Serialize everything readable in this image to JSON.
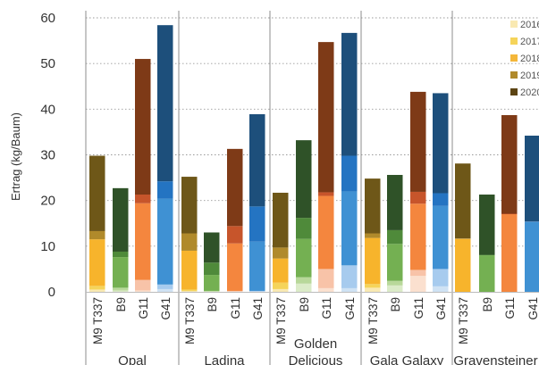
{
  "chart_data": {
    "type": "bar",
    "stacked": true,
    "ylabel": "Ertrag (kg/Baum)",
    "xlabel": "",
    "ylim": [
      0,
      60
    ],
    "yticks": [
      0,
      10,
      20,
      30,
      40,
      50,
      60
    ],
    "grid": "horizontal-dotted",
    "legend_position": "top-right",
    "years": [
      "2016",
      "2017",
      "2018",
      "2019",
      "2020"
    ],
    "legend": [
      {
        "label": "2016",
        "color": "#f9e9b2"
      },
      {
        "label": "2017",
        "color": "#f5d45a"
      },
      {
        "label": "2018",
        "color": "#f4b73a"
      },
      {
        "label": "2019",
        "color": "#b08a2b"
      },
      {
        "label": "2020",
        "color": "#5c4413"
      }
    ],
    "rootstock_palettes": {
      "M9 T337": [
        "#f9e9b2",
        "#f5d45a",
        "#f7b42c",
        "#b08a2b",
        "#6e5718"
      ],
      "B9": [
        "#dbebc8",
        "#b8d89a",
        "#74b052",
        "#4f8a3a",
        "#2f5228"
      ],
      "G11": [
        "#fbe0cf",
        "#f8c3a8",
        "#f4863e",
        "#c7552b",
        "#7e3a17"
      ],
      "G41": [
        "#cfe2f4",
        "#a7cbee",
        "#3f91d3",
        "#2474c2",
        "#1d4f7b"
      ]
    },
    "groups": [
      {
        "name": "Opal",
        "bars": [
          {
            "rootstock": "M9 T337",
            "values": [
              0.5,
              0.8,
              10.2,
              1.8,
              16.5
            ]
          },
          {
            "rootstock": "B9",
            "values": [
              0.3,
              0.6,
              6.7,
              1.2,
              13.9
            ]
          },
          {
            "rootstock": "G11",
            "values": [
              0.3,
              2.3,
              16.8,
              1.9,
              29.7
            ]
          },
          {
            "rootstock": "G41",
            "values": [
              0.6,
              1.0,
              18.8,
              3.8,
              34.2
            ]
          }
        ]
      },
      {
        "name": "Ladina",
        "bars": [
          {
            "rootstock": "M9 T337",
            "values": [
              0.2,
              0.3,
              8.5,
              3.8,
              12.4
            ]
          },
          {
            "rootstock": "B9",
            "values": [
              0.1,
              0.1,
              3.5,
              2.7,
              6.6
            ]
          },
          {
            "rootstock": "G11",
            "values": [
              0.1,
              0.1,
              10.4,
              3.8,
              16.9
            ]
          },
          {
            "rootstock": "G41",
            "values": [
              0.1,
              0.1,
              10.8,
              7.7,
              20.2
            ]
          }
        ]
      },
      {
        "name": "Golden Delicious",
        "name_lines": [
          "Golden",
          "Delicious"
        ],
        "bars": [
          {
            "rootstock": "M9 T337",
            "values": [
              0.6,
              1.4,
              5.3,
              2.4,
              12.0
            ]
          },
          {
            "rootstock": "B9",
            "values": [
              1.8,
              1.4,
              8.4,
              4.6,
              17.0
            ]
          },
          {
            "rootstock": "G11",
            "values": [
              0.8,
              4.2,
              16.0,
              0.8,
              32.9
            ]
          },
          {
            "rootstock": "G41",
            "values": [
              0.8,
              5.0,
              16.2,
              7.8,
              26.9
            ]
          }
        ]
      },
      {
        "name": "Gala Galaxy",
        "bars": [
          {
            "rootstock": "M9 T337",
            "values": [
              0.9,
              0.8,
              10.1,
              1.0,
              12.0
            ]
          },
          {
            "rootstock": "B9",
            "values": [
              1.4,
              1.0,
              8.1,
              3.0,
              12.1
            ]
          },
          {
            "rootstock": "G11",
            "values": [
              3.5,
              1.3,
              14.5,
              2.6,
              21.9
            ]
          },
          {
            "rootstock": "G41",
            "values": [
              1.2,
              3.8,
              13.8,
              2.8,
              21.9
            ]
          }
        ]
      },
      {
        "name": "Gravensteiner",
        "bars": [
          {
            "rootstock": "M9 T337",
            "values": [
              0.0,
              0.0,
              11.6,
              0.1,
              16.4
            ]
          },
          {
            "rootstock": "B9",
            "values": [
              0.0,
              0.0,
              8.0,
              0.1,
              13.2
            ]
          },
          {
            "rootstock": "G11",
            "values": [
              0.0,
              0.0,
              17.0,
              0.1,
              21.6
            ]
          },
          {
            "rootstock": "G41",
            "values": [
              0.0,
              0.0,
              15.3,
              0.1,
              18.8
            ]
          }
        ]
      }
    ]
  }
}
